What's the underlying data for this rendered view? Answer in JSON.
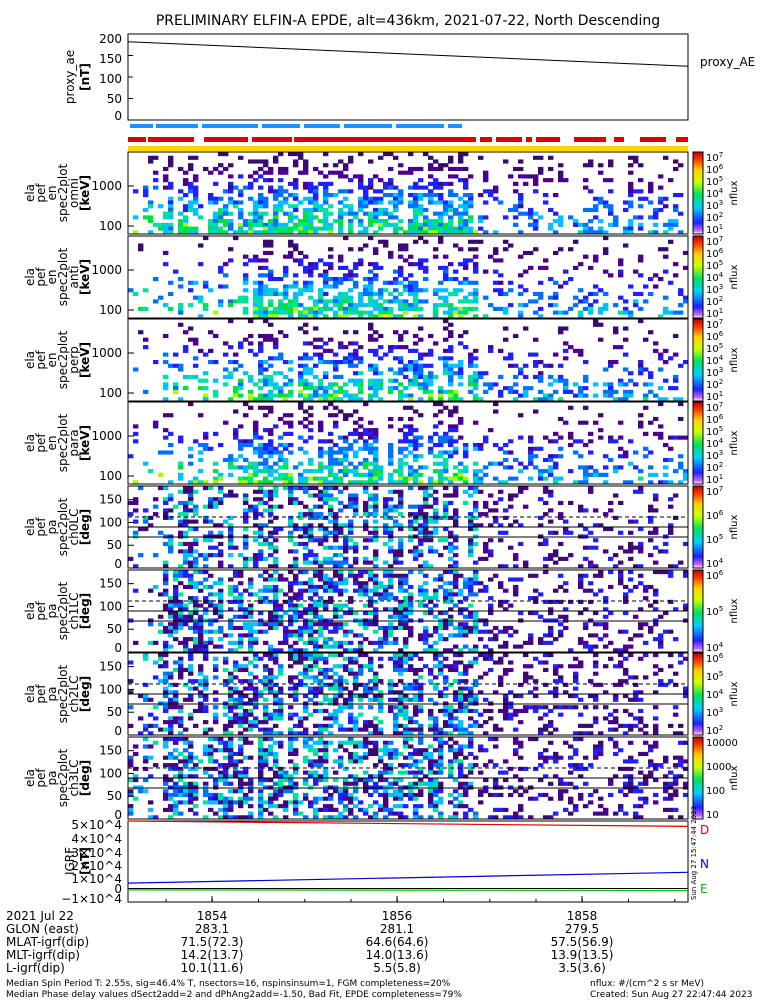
{
  "title": "PRELIMINARY ELFIN-A EPDE, alt=436km, 2021-07-22, North Descending",
  "chart_data": [
    {
      "type": "line",
      "panel": "proxy_ae",
      "ylabel_lines": [
        "proxy_ae",
        "[nT]"
      ],
      "legend": "proxy_AE",
      "yticks": [
        "200",
        "150",
        "100",
        "50",
        "0"
      ],
      "ylim": [
        0,
        200
      ],
      "x": [
        0,
        1
      ],
      "y": [
        182,
        125
      ],
      "color": "#000000"
    },
    {
      "type": "heatmap",
      "panel": "spectrogram-1",
      "ylabel_lines": [
        "ela",
        "pef",
        "en",
        "spec2plot",
        "omni",
        "[keV]"
      ],
      "ytick_labels": [
        "1000",
        "100"
      ],
      "yscale": "log",
      "zlabel": "nflux",
      "ztick_labels": [
        "10^7",
        "10^6",
        "10^5",
        "10^4",
        "10^3",
        "10^2",
        "10^1"
      ]
    },
    {
      "type": "heatmap",
      "panel": "spectrogram-2",
      "ylabel_lines": [
        "ela",
        "pef",
        "en",
        "spec2plot",
        "anti",
        "[keV]"
      ],
      "ytick_labels": [
        "1000",
        "100"
      ],
      "yscale": "log",
      "zlabel": "nflux",
      "ztick_labels": [
        "10^7",
        "10^6",
        "10^5",
        "10^4",
        "10^3",
        "10^2",
        "10^1"
      ]
    },
    {
      "type": "heatmap",
      "panel": "spectrogram-3",
      "ylabel_lines": [
        "ela",
        "pef",
        "en",
        "spec2plot",
        "perp",
        "[keV]"
      ],
      "ytick_labels": [
        "1000",
        "100"
      ],
      "yscale": "log",
      "zlabel": "nflux",
      "ztick_labels": [
        "10^7",
        "10^6",
        "10^5",
        "10^4",
        "10^3",
        "10^2",
        "10^1"
      ]
    },
    {
      "type": "heatmap",
      "panel": "spectrogram-4",
      "ylabel_lines": [
        "ela",
        "pef",
        "en",
        "spec2plot",
        "para",
        "[keV]"
      ],
      "ytick_labels": [
        "1000",
        "100"
      ],
      "yscale": "log",
      "zlabel": "nflux",
      "ztick_labels": [
        "10^7",
        "10^6",
        "10^5",
        "10^4",
        "10^3",
        "10^2",
        "10^1"
      ]
    },
    {
      "type": "heatmap",
      "panel": "pitch-angle-ch0LC",
      "ylabel_lines": [
        "ela",
        "pef",
        "pa",
        "spec2plot",
        "ch0LC",
        "[deg]"
      ],
      "yticks": [
        "150",
        "100",
        "50",
        "0"
      ],
      "ylim": [
        0,
        180
      ],
      "zlabel": "nflux",
      "ztick_labels": [
        "10^7",
        "10^6",
        "10^5",
        "10^4"
      ]
    },
    {
      "type": "heatmap",
      "panel": "pitch-angle-ch1LC",
      "ylabel_lines": [
        "ela",
        "pef",
        "pa",
        "spec2plot",
        "ch1LC",
        "[deg]"
      ],
      "yticks": [
        "150",
        "100",
        "50",
        "0"
      ],
      "ylim": [
        0,
        180
      ],
      "zlabel": "nflux",
      "ztick_labels": [
        "10^6",
        "10^5",
        "10^4"
      ]
    },
    {
      "type": "heatmap",
      "panel": "pitch-angle-ch2LC",
      "ylabel_lines": [
        "ela",
        "pef",
        "pa",
        "spec2plot",
        "ch2LC",
        "[deg]"
      ],
      "yticks": [
        "150",
        "100",
        "50",
        "0"
      ],
      "ylim": [
        0,
        180
      ],
      "zlabel": "nflux",
      "ztick_labels": [
        "10^6",
        "10^5",
        "10^4",
        "10^3",
        "10^2"
      ]
    },
    {
      "type": "heatmap",
      "panel": "pitch-angle-ch3LC",
      "ylabel_lines": [
        "ela",
        "pef",
        "pa",
        "spec2plot",
        "ch3LC",
        "[deg]"
      ],
      "yticks": [
        "150",
        "100",
        "50",
        "0"
      ],
      "ylim": [
        0,
        180
      ],
      "zlabel": "nflux",
      "ztick_labels": [
        "10000",
        "1000",
        "100",
        "10"
      ]
    },
    {
      "type": "line",
      "panel": "igrf",
      "ylabel_lines": [
        "IGRF",
        "[nT]"
      ],
      "ytick_labels": [
        "5×10^4",
        "4×10^4",
        "3×10^4",
        "2×10^4",
        "1×10^4",
        "0",
        "−1×10^4"
      ],
      "ylim": [
        -10000,
        50000
      ],
      "series": [
        {
          "name": "D",
          "color": "#e00000",
          "x": [
            0,
            1
          ],
          "y": [
            50000,
            46000
          ]
        },
        {
          "name": "N",
          "color": "#0000e0",
          "x": [
            0,
            1
          ],
          "y": [
            4000,
            12000
          ]
        },
        {
          "name": "E",
          "color": "#00c000",
          "x": [
            0,
            1
          ],
          "y": [
            -1000,
            -1500
          ]
        }
      ],
      "side_note": "Sun Aug 27 15:47:44 2023"
    }
  ],
  "xaxis": {
    "date": "2021 Jul 22",
    "tick_labels": [
      "1854",
      "1856",
      "1858"
    ],
    "rows": [
      {
        "label": "GLON (east)",
        "values": [
          "283.1",
          "281.1",
          "279.5"
        ]
      },
      {
        "label": "MLAT-igrf(dip)",
        "values": [
          "71.5(72.3)",
          "64.6(64.6)",
          "57.5(56.9)"
        ]
      },
      {
        "label": "MLT-igrf(dip)",
        "values": [
          "14.2(13.7)",
          "14.0(13.6)",
          "13.9(13.5)"
        ]
      },
      {
        "label": "L-igrf(dip)",
        "values": [
          "10.1(11.6)",
          "5.5(5.8)",
          "3.5(3.6)"
        ]
      }
    ]
  },
  "footer": {
    "line1": "Median Spin Period T: 2.55s, sig=46.4% T, nsectors=16, nspinsinsum=1, FGM completeness=20%",
    "line2": "Median Phase delay values dSect2add=2 and dPhAng2add=-1.50, Bad Fit, EPDE completeness=79%",
    "units": "nflux: #/(cm^2 s sr MeV)",
    "created": "Created: Sun Aug 27 22:47:44 2023"
  },
  "colors": {
    "status_red": "#e00000",
    "status_blue": "#1e90ff",
    "status_yellow": "#ffd700"
  }
}
